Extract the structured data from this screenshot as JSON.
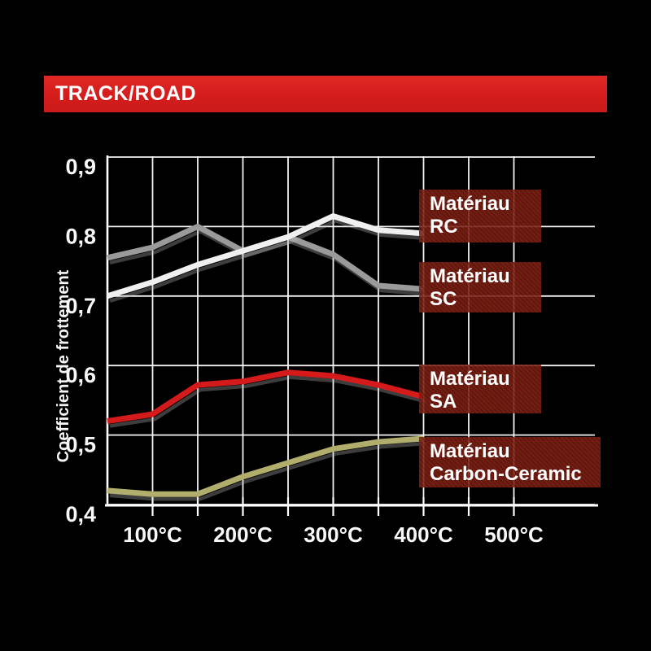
{
  "banner": {
    "title": "TRACK/ROAD",
    "bg_color": "#d41d1c"
  },
  "chart_data": {
    "type": "line",
    "title": "",
    "xlabel": "",
    "ylabel": "Coefficient de frottement",
    "x_unit": "°C",
    "grid": true,
    "grid_color": "#ffffff",
    "background": "#000000",
    "xlim": [
      50,
      590
    ],
    "ylim": [
      0.4,
      0.9
    ],
    "x": [
      50,
      100,
      150,
      200,
      250,
      300,
      350,
      400
    ],
    "xtick_values": [
      100,
      200,
      300,
      400,
      500
    ],
    "xtick_labels": [
      "100°C",
      "200°C",
      "300°C",
      "400°C",
      "500°C"
    ],
    "ytick_values": [
      0.9,
      0.8,
      0.7,
      0.6,
      0.5,
      0.4
    ],
    "ytick_labels": [
      "0,9",
      "0,8",
      "0,7",
      "0,6",
      "0,5",
      "0,4"
    ],
    "series": [
      {
        "name": "Matériau RC",
        "color": "#f0f0f0",
        "values": [
          0.7,
          0.72,
          0.745,
          0.765,
          0.785,
          0.815,
          0.795,
          0.79
        ]
      },
      {
        "name": "Matériau SC",
        "color": "#9a9a9a",
        "values": [
          0.755,
          0.77,
          0.8,
          0.765,
          0.785,
          0.76,
          0.715,
          0.71
        ]
      },
      {
        "name": "Matériau SA",
        "color": "#d41a1a",
        "values": [
          0.52,
          0.53,
          0.572,
          0.577,
          0.59,
          0.585,
          0.572,
          0.555
        ]
      },
      {
        "name": "Matériau Carbon-Ceramic",
        "color": "#b1ad6c",
        "values": [
          0.42,
          0.415,
          0.415,
          0.44,
          0.46,
          0.48,
          0.49,
          0.495
        ]
      }
    ],
    "legend_position": "inside-right"
  },
  "legend": {
    "items": [
      {
        "line1": "Matériau",
        "line2": "RC"
      },
      {
        "line1": "Matériau",
        "line2": "SC"
      },
      {
        "line1": "Matériau",
        "line2": "SA"
      },
      {
        "line1": "Matériau",
        "line2": "Carbon-Ceramic"
      }
    ]
  }
}
